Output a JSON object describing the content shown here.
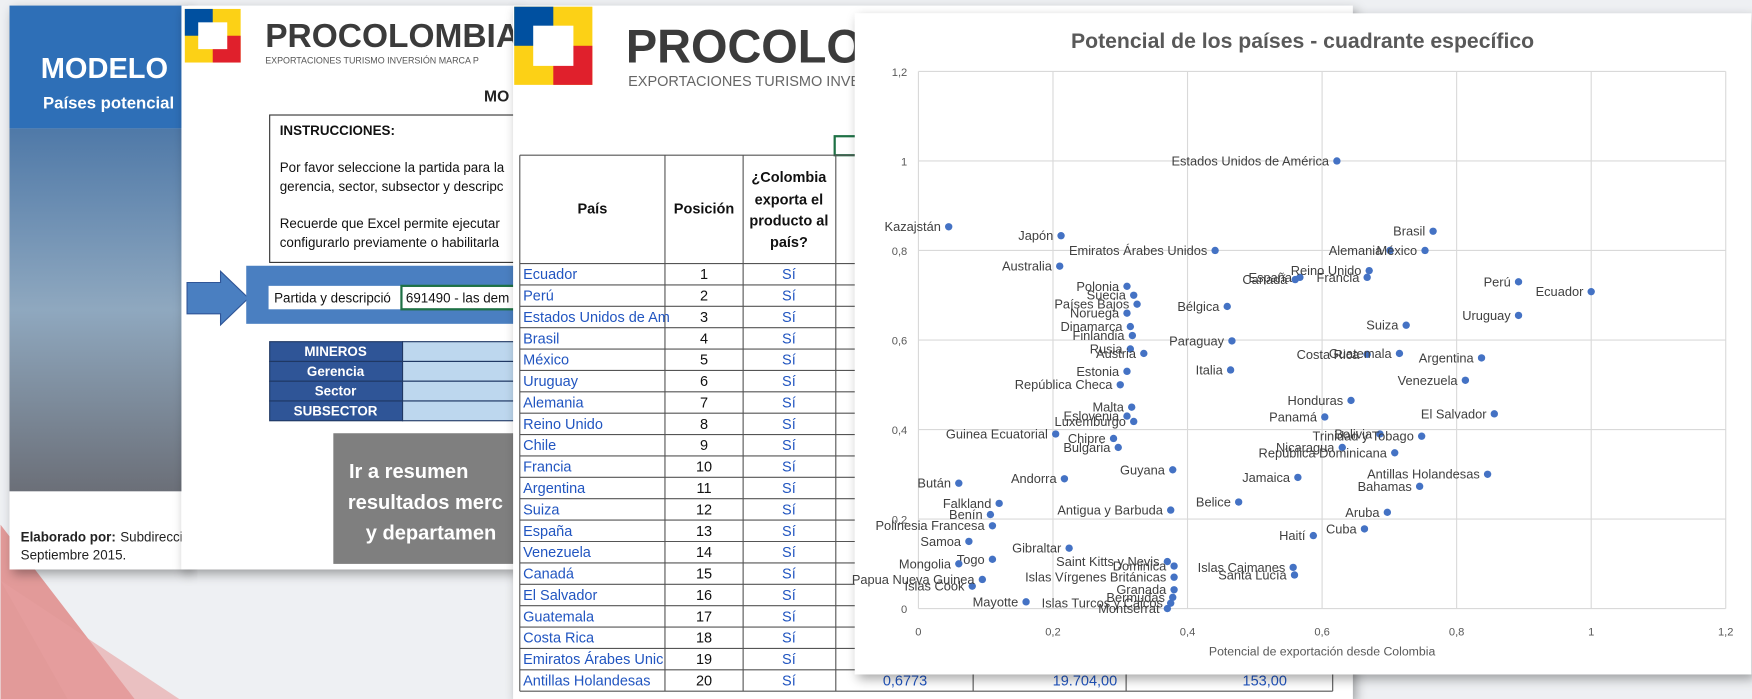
{
  "slide": {
    "title": "MODELO",
    "subtitle": "Países potencial",
    "credit_label": "Elaborado por:",
    "credit_text": "Subdirecci",
    "date": "Septiembre 2015."
  },
  "sheet1": {
    "logo": "PROCOLOMBIA",
    "tagline": "EXPORTACIONES TURISMO INVERSIÓN MARCA P",
    "heading": "MO",
    "instructions": [
      "INSTRUCCIONES:",
      "Por favor seleccione la partida para la",
      "gerencia, sector, subsector y descripc",
      "Recuerde que Excel  permite ejecutar",
      "configurarlo previamente o habilitarla"
    ],
    "selector_label": "Partida y descripció",
    "selector_value": "691490 - las dem",
    "fields": [
      "MINEROS",
      "Gerencia",
      "Sector",
      "SUBSECTOR"
    ],
    "button": [
      "Ir a resumen",
      "resultados merc",
      "y departamen"
    ]
  },
  "sheet2": {
    "logo": "PROCOLO",
    "tagline": "EXPORTACIONES TURISMO INVER",
    "headers": [
      "País",
      "Posición",
      "¿Colombia",
      "exporta el",
      "producto al",
      "país?"
    ],
    "rows": [
      [
        "Ecuador",
        "1",
        "Sí"
      ],
      [
        "Perú",
        "2",
        "Sí"
      ],
      [
        "Estados Unidos de Am",
        "3",
        "Sí"
      ],
      [
        "Brasil",
        "4",
        "Sí"
      ],
      [
        "México",
        "5",
        "Sí"
      ],
      [
        "Uruguay",
        "6",
        "Sí"
      ],
      [
        "Alemania",
        "7",
        "Sí"
      ],
      [
        "Reino Unido",
        "8",
        "Sí"
      ],
      [
        "Chile",
        "9",
        "Sí"
      ],
      [
        "Francia",
        "10",
        "Sí"
      ],
      [
        "Argentina",
        "11",
        "Sí"
      ],
      [
        "Suiza",
        "12",
        "Sí"
      ],
      [
        "España",
        "13",
        "Sí"
      ],
      [
        "Venezuela",
        "14",
        "Sí"
      ],
      [
        "Canadá",
        "15",
        "Sí"
      ],
      [
        "El Salvador",
        "16",
        "Sí"
      ],
      [
        "Guatemala",
        "17",
        "Sí"
      ],
      [
        "Costa Rica",
        "18",
        "Sí"
      ],
      [
        "Emiratos Árabes Unic",
        "19",
        "Sí"
      ],
      [
        "Antillas Holandesas",
        "20",
        "Sí"
      ]
    ],
    "last_row_extra": [
      "0,6773",
      "19.704,00",
      "153,00"
    ]
  },
  "chart_data": {
    "type": "scatter",
    "title": "Potencial de los países - cuadrante específico",
    "x_label": "Potencial de exportación desde Colombia",
    "color": "#4472c4",
    "grid": true,
    "xlim": [
      0,
      1.2
    ],
    "ylim": [
      0,
      1.2
    ],
    "xticks": [
      0,
      {
        "value": 0.2,
        "label": "0,2"
      },
      {
        "value": 0.4,
        "label": "0,4"
      },
      {
        "value": 0.6,
        "label": "0,6"
      },
      {
        "value": 0.8,
        "label": "0,8"
      },
      1,
      {
        "value": 1.2,
        "label": "1,2"
      }
    ],
    "yticks": [
      0,
      {
        "value": 0.2,
        "label": "0,2"
      },
      {
        "value": 0.4,
        "label": "0,4"
      },
      {
        "value": 0.6,
        "label": "0,6"
      },
      {
        "value": 0.8,
        "label": "0,8"
      },
      1,
      {
        "value": 1.2,
        "label": "1,2"
      }
    ],
    "labels": [
      "Estados Unidos de América",
      "Kazajstán",
      "Japón",
      "Emiratos Árabes Unidos",
      "Brasil",
      "Alemania",
      "México",
      "España",
      "Reino Unido",
      "Francia",
      "Canadá",
      "Perú",
      "Ecuador",
      "Uruguay",
      "Suiza",
      "Bélgica",
      "Paraguay",
      "Italia",
      "Costa Rica",
      "Guatemala",
      "Argentina",
      "Venezuela",
      "Honduras",
      "Panamá",
      "El Salvador",
      "Bolivia",
      "Trinidad y Tobago",
      "Nicaragua",
      "República Dominicana",
      "Antillas Holandesas",
      "Jamaica",
      "Bahamas",
      "Belice",
      "Aruba",
      "Cuba",
      "Haití",
      "Islas Caimanes",
      "Santa Lucía",
      "Guyana",
      "Antigua y Barbuda",
      "Saint Kitts y Nevis",
      "Dominica",
      "Islas Vírgenes Británicas",
      "Granada",
      "Bermudas",
      "Islas Turcos y Caicos",
      "Montserrat",
      "Andorra",
      "Gibraltar",
      "Malta",
      "Luxemburgo",
      "Eslovenia",
      "Chipre",
      "Bulgaria",
      "Polonia",
      "Suecia",
      "Países Bajos",
      "Noruega",
      "Dinamarca",
      "Finlandia",
      "Rusia",
      "Austria",
      "Estonia",
      "República Checa",
      "Australia",
      "Benín",
      "Falkland",
      "Polinesia Francesa",
      "Guinea Ecuatorial",
      "Samoa",
      "Togo",
      "Islas Cook",
      "Mayotte",
      "Bután",
      "Papua Nueva Guinea",
      "Mongolia"
    ],
    "x": [
      0.622,
      0.045,
      0.212,
      0.441,
      0.765,
      0.701,
      0.753,
      0.567,
      0.67,
      0.667,
      0.56,
      0.892,
      1.0,
      0.892,
      0.725,
      0.459,
      0.466,
      0.464,
      0.667,
      0.715,
      0.837,
      0.813,
      0.643,
      0.604,
      0.856,
      0.686,
      0.748,
      0.63,
      0.708,
      0.846,
      0.564,
      0.745,
      0.476,
      0.697,
      0.663,
      0.587,
      0.557,
      0.559,
      0.378,
      0.375,
      0.37,
      0.38,
      0.38,
      0.38,
      0.378,
      0.375,
      0.37,
      0.217,
      0.224,
      0.317,
      0.32,
      0.31,
      0.29,
      0.297,
      0.31,
      0.32,
      0.325,
      0.31,
      0.315,
      0.318,
      0.315,
      0.335,
      0.31,
      0.3,
      0.21,
      0.107,
      0.12,
      0.11,
      0.204,
      0.075,
      0.11,
      0.08,
      0.16,
      0.06,
      0.095,
      0.06
    ],
    "y": [
      1.0,
      0.853,
      0.833,
      0.8,
      0.843,
      0.8,
      0.8,
      0.74,
      0.755,
      0.74,
      0.735,
      0.73,
      0.708,
      0.655,
      0.633,
      0.675,
      0.598,
      0.533,
      0.568,
      0.57,
      0.56,
      0.51,
      0.465,
      0.428,
      0.435,
      0.39,
      0.385,
      0.36,
      0.348,
      0.3,
      0.293,
      0.273,
      0.238,
      0.215,
      0.178,
      0.163,
      0.092,
      0.075,
      0.31,
      0.22,
      0.105,
      0.095,
      0.07,
      0.042,
      0.025,
      0.012,
      0.0,
      0.29,
      0.135,
      0.45,
      0.418,
      0.43,
      0.38,
      0.36,
      0.72,
      0.7,
      0.68,
      0.66,
      0.63,
      0.61,
      0.58,
      0.57,
      0.53,
      0.5,
      0.765,
      0.21,
      0.235,
      0.185,
      0.39,
      0.15,
      0.11,
      0.05,
      0.015,
      0.28,
      0.065,
      0.1
    ]
  }
}
